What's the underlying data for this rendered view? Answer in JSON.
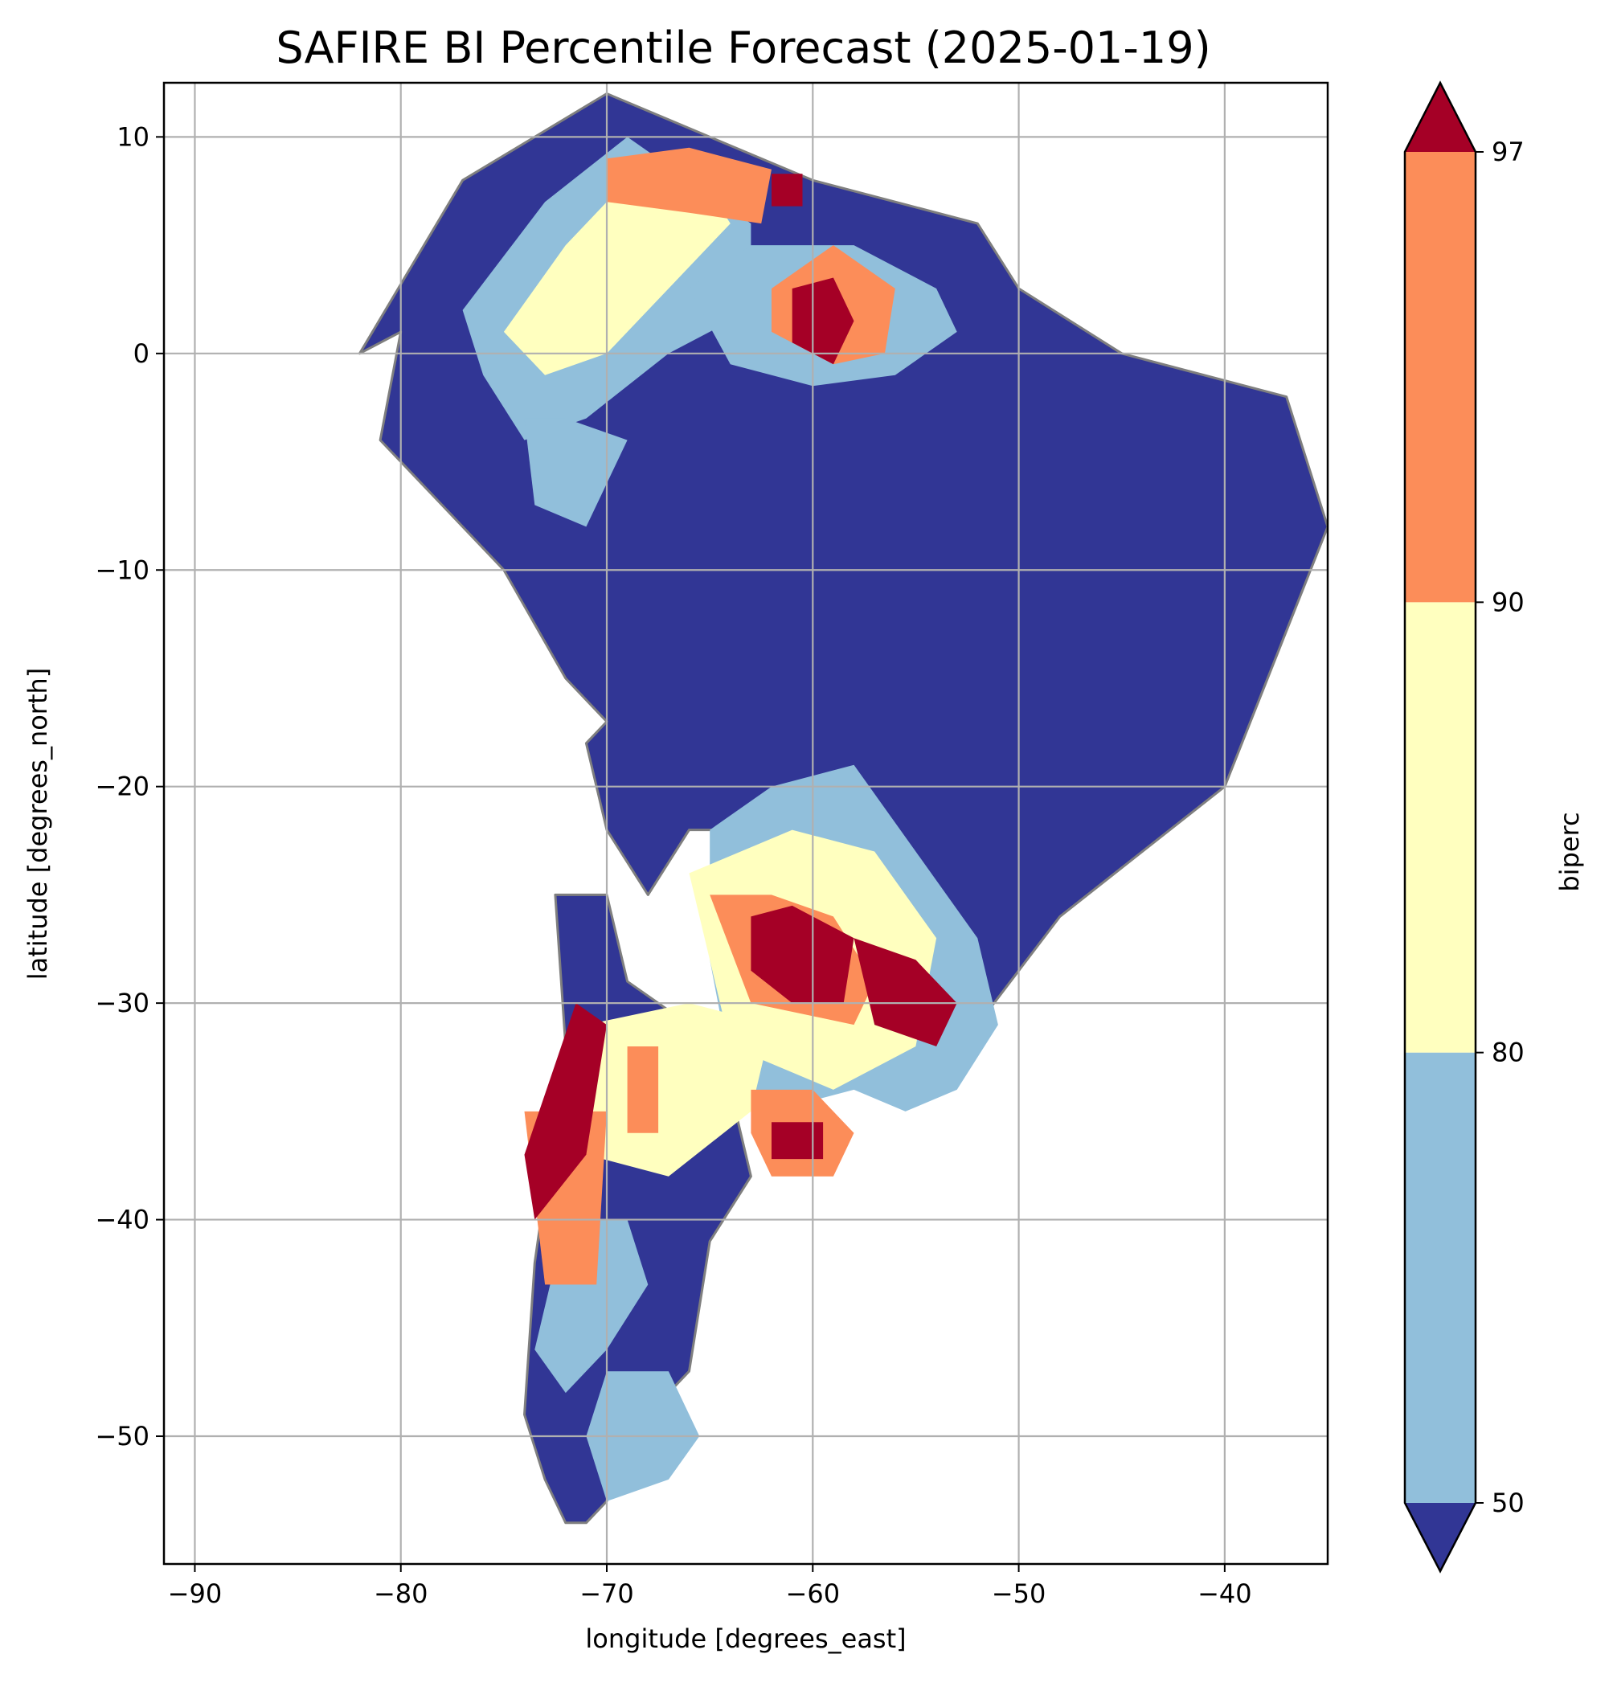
{
  "figure": {
    "title": "SAFIRE BI Percentile Forecast (2025-01-19)",
    "xlabel": "longitude [degrees_east]",
    "ylabel": "latitude [degrees_north]",
    "colorbar_label": "biperc"
  },
  "chart_data": {
    "type": "heatmap",
    "title": "SAFIRE BI Percentile Forecast (2025-01-19)",
    "xlabel": "longitude [degrees_east]",
    "ylabel": "latitude [degrees_north]",
    "xlim": [
      -91.5,
      -35
    ],
    "ylim": [
      -55.9,
      12.5
    ],
    "x_ticks": [
      -90,
      -80,
      -70,
      -60,
      -50,
      -40
    ],
    "y_ticks": [
      10,
      0,
      -10,
      -20,
      -30,
      -40,
      -50
    ],
    "x_tick_labels": [
      "−90",
      "−80",
      "−70",
      "−60",
      "−50",
      "−40"
    ],
    "y_tick_labels": [
      "10",
      "0",
      "−10",
      "−20",
      "−30",
      "−40",
      "−50"
    ],
    "grid": true,
    "colorbar": {
      "label": "biperc",
      "levels": [
        50,
        80,
        90,
        97
      ],
      "tick_labels": [
        "50",
        "80",
        "90",
        "97"
      ],
      "bins": [
        {
          "range": "<50",
          "color": "#313695"
        },
        {
          "range": "50-80",
          "color": "#91bfdb"
        },
        {
          "range": "80-90",
          "color": "#ffffbf"
        },
        {
          "range": "90-97",
          "color": "#fc8d59"
        },
        {
          "range": ">97",
          "color": "#a50026"
        }
      ],
      "extend": "both"
    },
    "regions": [
      {
        "category": "<50",
        "lon": [
          -82,
          -77,
          -70,
          -60,
          -52,
          -50,
          -45,
          -37,
          -35,
          -40,
          -48,
          -52,
          -58,
          -62,
          -66,
          -68,
          -70,
          -71,
          -70,
          -72,
          -75,
          -78,
          -81,
          -80
        ],
        "lat": [
          0,
          8,
          12,
          8,
          6,
          3,
          0,
          -2,
          -8,
          -20,
          -26,
          -31,
          -26,
          -22,
          -22,
          -25,
          -22,
          -18,
          -17,
          -15,
          -10,
          -7,
          -4,
          1
        ]
      },
      {
        "category": "<50",
        "lon": [
          -72.5,
          -70,
          -69,
          -66,
          -64,
          -63,
          -65,
          -66,
          -69,
          -70,
          -71,
          -72,
          -73,
          -74,
          -73.5,
          -72
        ],
        "lat": [
          -25,
          -25,
          -29,
          -31,
          -34,
          -38,
          -41,
          -47,
          -50,
          -53,
          -54,
          -54,
          -52,
          -49,
          -42,
          -32
        ]
      },
      {
        "category": "50-80",
        "lon": [
          -77,
          -73,
          -69,
          -66,
          -63,
          -63,
          -67,
          -71,
          -74,
          -76
        ],
        "lat": [
          2,
          7,
          10,
          8,
          6,
          2,
          0,
          -3,
          -4,
          -1
        ]
      },
      {
        "category": "50-80",
        "lon": [
          -66,
          -63,
          -58,
          -54,
          -53,
          -56,
          -60,
          -64
        ],
        "lat": [
          3,
          5,
          5,
          3,
          1,
          -1,
          -1.5,
          -0.5
        ]
      },
      {
        "category": "50-80",
        "lon": [
          -74,
          -72,
          -69,
          -71,
          -73.5
        ],
        "lat": [
          -3,
          -3,
          -4,
          -8,
          -7
        ]
      },
      {
        "category": "50-80",
        "lon": [
          -65,
          -62,
          -58,
          -55,
          -52,
          -51,
          -53,
          -55.5,
          -58,
          -62,
          -64,
          -65
        ],
        "lat": [
          -22,
          -20,
          -19,
          -23,
          -27,
          -31,
          -34,
          -35,
          -34,
          -35,
          -33,
          -28
        ]
      },
      {
        "category": "50-80",
        "lon": [
          -71.5,
          -69,
          -68,
          -70,
          -72,
          -73.5,
          -72.5
        ],
        "lat": [
          -40,
          -40,
          -43,
          -46,
          -48,
          -46,
          -42
        ]
      },
      {
        "category": "50-80",
        "lon": [
          -70,
          -67,
          -65.5,
          -67,
          -70,
          -71
        ],
        "lat": [
          -47,
          -47,
          -50,
          -52,
          -53,
          -50
        ]
      },
      {
        "category": "80-90",
        "lon": [
          -75,
          -72,
          -69,
          -66,
          -64,
          -67,
          -70,
          -73
        ],
        "lat": [
          1,
          5,
          8,
          9,
          6,
          3,
          0,
          -1
        ]
      },
      {
        "category": "80-90",
        "lon": [
          -66,
          -61,
          -57,
          -54,
          -55,
          -59,
          -64
        ],
        "lat": [
          -24,
          -22,
          -23,
          -27,
          -32,
          -34,
          -32
        ]
      },
      {
        "category": "80-90",
        "lon": [
          -71,
          -66,
          -62,
          -63,
          -67,
          -71
        ],
        "lat": [
          -31,
          -30,
          -31,
          -35,
          -38,
          -37
        ]
      },
      {
        "category": "90-97",
        "lon": [
          -70,
          -66,
          -62,
          -62.5,
          -66,
          -70
        ],
        "lat": [
          9,
          9.5,
          8.5,
          6,
          6.5,
          7
        ]
      },
      {
        "category": "90-97",
        "lon": [
          -62,
          -59,
          -56,
          -56.5,
          -59,
          -62
        ],
        "lat": [
          3,
          5,
          3,
          0,
          -0.5,
          1
        ]
      },
      {
        "category": "90-97",
        "lon": [
          -65,
          -62,
          -59,
          -57,
          -58,
          -63
        ],
        "lat": [
          -25,
          -25,
          -26,
          -29,
          -31,
          -30
        ]
      },
      {
        "category": "90-97",
        "lon": [
          -63,
          -60,
          -58,
          -59,
          -62,
          -63
        ],
        "lat": [
          -34,
          -34,
          -36,
          -38,
          -38,
          -36
        ]
      },
      {
        "category": "90-97",
        "lon": [
          -74,
          -70,
          -70.5,
          -73
        ],
        "lat": [
          -35,
          -35,
          -43,
          -43
        ]
      },
      {
        "category": "90-97",
        "lon": [
          -69,
          -67.5,
          -67.5,
          -69
        ],
        "lat": [
          -32,
          -32,
          -36,
          -36
        ]
      },
      {
        "category": ">97",
        "lon": [
          -63,
          -61,
          -58,
          -58.5,
          -61,
          -63
        ],
        "lat": [
          -26,
          -25.5,
          -27,
          -30,
          -30,
          -28.5
        ]
      },
      {
        "category": ">97",
        "lon": [
          -58,
          -55,
          -53,
          -54,
          -57
        ],
        "lat": [
          -27,
          -28,
          -30,
          -32,
          -31
        ]
      },
      {
        "category": ">97",
        "lon": [
          -61,
          -59,
          -58,
          -59,
          -61
        ],
        "lat": [
          3,
          3.5,
          1.5,
          -0.5,
          0.5
        ]
      },
      {
        "category": ">97",
        "lon": [
          -62,
          -60.5,
          -60.5,
          -62
        ],
        "lat": [
          8.3,
          8.3,
          6.8,
          6.8
        ]
      },
      {
        "category": ">97",
        "lon": [
          -71.5,
          -70,
          -71,
          -73.5,
          -74
        ],
        "lat": [
          -30,
          -31,
          -37,
          -40,
          -37
        ]
      },
      {
        "category": ">97",
        "lon": [
          -62,
          -59.5,
          -59.5,
          -62
        ],
        "lat": [
          -35.5,
          -35.5,
          -37.2,
          -37.2
        ]
      }
    ]
  }
}
